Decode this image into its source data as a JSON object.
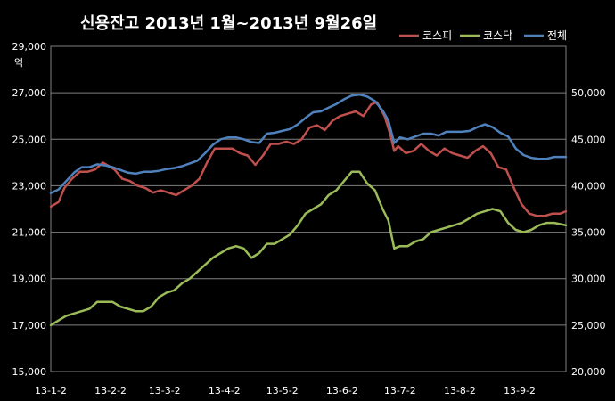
{
  "chart_data": {
    "type": "line",
    "title": "신용잔고 2013년 1월~2013년 9월26일",
    "y_left_unit": "억",
    "y_left": {
      "min": 15000,
      "max": 29000,
      "ticks": [
        "15,000",
        "17,000",
        "19,000",
        "21,000",
        "23,000",
        "25,000",
        "27,000",
        "29,000"
      ]
    },
    "y_right": {
      "min": 20000,
      "max": 55000,
      "ticks": [
        "20,000",
        "25,000",
        "30,000",
        "35,000",
        "40,000",
        "45,000",
        "50,000"
      ]
    },
    "x_ticks": [
      "13-1-2",
      "13-2-2",
      "13-3-2",
      "13-4-2",
      "13-5-2",
      "13-6-2",
      "13-7-2",
      "13-8-2",
      "13-9-2"
    ],
    "grid": true,
    "legend_position": "top-right",
    "series": [
      {
        "name": "코스피",
        "axis": "left",
        "color": "#c0504d",
        "points": [
          [
            "2013-01-02",
            22100
          ],
          [
            "2013-01-06",
            22300
          ],
          [
            "2013-01-09",
            22900
          ],
          [
            "2013-01-13",
            23300
          ],
          [
            "2013-01-17",
            23600
          ],
          [
            "2013-01-21",
            23600
          ],
          [
            "2013-01-25",
            23700
          ],
          [
            "2013-01-29",
            24000
          ],
          [
            "2013-01-31",
            23900
          ],
          [
            "2013-02-04",
            23700
          ],
          [
            "2013-02-08",
            23300
          ],
          [
            "2013-02-12",
            23200
          ],
          [
            "2013-02-16",
            23000
          ],
          [
            "2013-02-20",
            22900
          ],
          [
            "2013-02-24",
            22700
          ],
          [
            "2013-02-28",
            22800
          ],
          [
            "2013-03-04",
            22700
          ],
          [
            "2013-03-08",
            22600
          ],
          [
            "2013-03-12",
            22800
          ],
          [
            "2013-03-16",
            23000
          ],
          [
            "2013-03-20",
            23300
          ],
          [
            "2013-03-24",
            24000
          ],
          [
            "2013-03-28",
            24600
          ],
          [
            "2013-04-02",
            24600
          ],
          [
            "2013-04-06",
            24600
          ],
          [
            "2013-04-10",
            24400
          ],
          [
            "2013-04-14",
            24300
          ],
          [
            "2013-04-18",
            23900
          ],
          [
            "2013-04-22",
            24300
          ],
          [
            "2013-04-26",
            24800
          ],
          [
            "2013-04-30",
            24800
          ],
          [
            "2013-05-04",
            24900
          ],
          [
            "2013-05-08",
            24800
          ],
          [
            "2013-05-12",
            25000
          ],
          [
            "2013-05-16",
            25500
          ],
          [
            "2013-05-20",
            25600
          ],
          [
            "2013-05-24",
            25400
          ],
          [
            "2013-05-28",
            25800
          ],
          [
            "2013-06-01",
            26000
          ],
          [
            "2013-06-05",
            26100
          ],
          [
            "2013-06-09",
            26200
          ],
          [
            "2013-06-13",
            26000
          ],
          [
            "2013-06-17",
            26500
          ],
          [
            "2013-06-20",
            26600
          ],
          [
            "2013-06-24",
            26000
          ],
          [
            "2013-06-27",
            25200
          ],
          [
            "2013-06-29",
            24500
          ],
          [
            "2013-07-01",
            24700
          ],
          [
            "2013-07-05",
            24400
          ],
          [
            "2013-07-09",
            24500
          ],
          [
            "2013-07-13",
            24800
          ],
          [
            "2013-07-17",
            24500
          ],
          [
            "2013-07-21",
            24300
          ],
          [
            "2013-07-25",
            24600
          ],
          [
            "2013-07-29",
            24400
          ],
          [
            "2013-08-02",
            24300
          ],
          [
            "2013-08-06",
            24200
          ],
          [
            "2013-08-10",
            24500
          ],
          [
            "2013-08-14",
            24700
          ],
          [
            "2013-08-18",
            24400
          ],
          [
            "2013-08-22",
            23800
          ],
          [
            "2013-08-26",
            23700
          ],
          [
            "2013-08-30",
            22900
          ],
          [
            "2013-09-03",
            22200
          ],
          [
            "2013-09-07",
            21800
          ],
          [
            "2013-09-11",
            21700
          ],
          [
            "2013-09-15",
            21700
          ],
          [
            "2013-09-19",
            21800
          ],
          [
            "2013-09-23",
            21800
          ],
          [
            "2013-09-26",
            21900
          ]
        ]
      },
      {
        "name": "코스닥",
        "axis": "left",
        "color": "#9bbb59",
        "points": [
          [
            "2013-01-02",
            17000
          ],
          [
            "2013-01-06",
            17200
          ],
          [
            "2013-01-10",
            17400
          ],
          [
            "2013-01-14",
            17500
          ],
          [
            "2013-01-18",
            17600
          ],
          [
            "2013-01-22",
            17700
          ],
          [
            "2013-01-26",
            18000
          ],
          [
            "2013-01-30",
            18000
          ],
          [
            "2013-02-03",
            18000
          ],
          [
            "2013-02-07",
            17800
          ],
          [
            "2013-02-11",
            17700
          ],
          [
            "2013-02-15",
            17600
          ],
          [
            "2013-02-19",
            17600
          ],
          [
            "2013-02-23",
            17800
          ],
          [
            "2013-02-27",
            18200
          ],
          [
            "2013-03-03",
            18400
          ],
          [
            "2013-03-07",
            18500
          ],
          [
            "2013-03-11",
            18800
          ],
          [
            "2013-03-15",
            19000
          ],
          [
            "2013-03-19",
            19300
          ],
          [
            "2013-03-23",
            19600
          ],
          [
            "2013-03-27",
            19900
          ],
          [
            "2013-03-31",
            20100
          ],
          [
            "2013-04-04",
            20300
          ],
          [
            "2013-04-08",
            20400
          ],
          [
            "2013-04-12",
            20300
          ],
          [
            "2013-04-16",
            19900
          ],
          [
            "2013-04-20",
            20100
          ],
          [
            "2013-04-24",
            20500
          ],
          [
            "2013-04-28",
            20500
          ],
          [
            "2013-05-02",
            20700
          ],
          [
            "2013-05-06",
            20900
          ],
          [
            "2013-05-10",
            21300
          ],
          [
            "2013-05-14",
            21800
          ],
          [
            "2013-05-18",
            22000
          ],
          [
            "2013-05-22",
            22200
          ],
          [
            "2013-05-26",
            22600
          ],
          [
            "2013-05-30",
            22800
          ],
          [
            "2013-06-03",
            23200
          ],
          [
            "2013-06-07",
            23600
          ],
          [
            "2013-06-11",
            23600
          ],
          [
            "2013-06-15",
            23100
          ],
          [
            "2013-06-19",
            22800
          ],
          [
            "2013-06-23",
            22000
          ],
          [
            "2013-06-26",
            21500
          ],
          [
            "2013-06-29",
            20300
          ],
          [
            "2013-07-02",
            20400
          ],
          [
            "2013-07-06",
            20400
          ],
          [
            "2013-07-10",
            20600
          ],
          [
            "2013-07-14",
            20700
          ],
          [
            "2013-07-18",
            21000
          ],
          [
            "2013-07-22",
            21100
          ],
          [
            "2013-07-26",
            21200
          ],
          [
            "2013-07-30",
            21300
          ],
          [
            "2013-08-03",
            21400
          ],
          [
            "2013-08-07",
            21600
          ],
          [
            "2013-08-11",
            21800
          ],
          [
            "2013-08-15",
            21900
          ],
          [
            "2013-08-19",
            22000
          ],
          [
            "2013-08-23",
            21900
          ],
          [
            "2013-08-27",
            21400
          ],
          [
            "2013-08-31",
            21100
          ],
          [
            "2013-09-04",
            21000
          ],
          [
            "2013-09-08",
            21100
          ],
          [
            "2013-09-12",
            21300
          ],
          [
            "2013-09-16",
            21400
          ],
          [
            "2013-09-20",
            21400
          ],
          [
            "2013-09-26",
            21300
          ]
        ]
      },
      {
        "name": "전체",
        "axis": "right",
        "color": "#4f81bd",
        "points": [
          [
            "2013-01-02",
            39200
          ],
          [
            "2013-01-06",
            39600
          ],
          [
            "2013-01-10",
            40500
          ],
          [
            "2013-01-14",
            41400
          ],
          [
            "2013-01-18",
            42000
          ],
          [
            "2013-01-22",
            42000
          ],
          [
            "2013-01-26",
            42300
          ],
          [
            "2013-01-30",
            42200
          ],
          [
            "2013-02-03",
            42000
          ],
          [
            "2013-02-07",
            41700
          ],
          [
            "2013-02-11",
            41400
          ],
          [
            "2013-02-15",
            41300
          ],
          [
            "2013-02-19",
            41500
          ],
          [
            "2013-02-23",
            41500
          ],
          [
            "2013-02-27",
            41600
          ],
          [
            "2013-03-03",
            41800
          ],
          [
            "2013-03-07",
            41900
          ],
          [
            "2013-03-11",
            42100
          ],
          [
            "2013-03-15",
            42400
          ],
          [
            "2013-03-19",
            42700
          ],
          [
            "2013-03-23",
            43500
          ],
          [
            "2013-03-27",
            44400
          ],
          [
            "2013-03-31",
            45000
          ],
          [
            "2013-04-04",
            45200
          ],
          [
            "2013-04-08",
            45200
          ],
          [
            "2013-04-12",
            45000
          ],
          [
            "2013-04-16",
            44700
          ],
          [
            "2013-04-20",
            44600
          ],
          [
            "2013-04-24",
            45600
          ],
          [
            "2013-04-28",
            45700
          ],
          [
            "2013-05-02",
            45900
          ],
          [
            "2013-05-06",
            46100
          ],
          [
            "2013-05-10",
            46600
          ],
          [
            "2013-05-14",
            47300
          ],
          [
            "2013-05-18",
            47900
          ],
          [
            "2013-05-22",
            48000
          ],
          [
            "2013-05-26",
            48400
          ],
          [
            "2013-05-30",
            48800
          ],
          [
            "2013-06-03",
            49300
          ],
          [
            "2013-06-07",
            49700
          ],
          [
            "2013-06-11",
            49800
          ],
          [
            "2013-06-15",
            49600
          ],
          [
            "2013-06-19",
            49100
          ],
          [
            "2013-06-23",
            48100
          ],
          [
            "2013-06-26",
            47000
          ],
          [
            "2013-06-29",
            44600
          ],
          [
            "2013-07-02",
            45200
          ],
          [
            "2013-07-06",
            45000
          ],
          [
            "2013-07-10",
            45300
          ],
          [
            "2013-07-14",
            45600
          ],
          [
            "2013-07-18",
            45600
          ],
          [
            "2013-07-22",
            45400
          ],
          [
            "2013-07-26",
            45800
          ],
          [
            "2013-07-30",
            45800
          ],
          [
            "2013-08-03",
            45800
          ],
          [
            "2013-08-07",
            45900
          ],
          [
            "2013-08-11",
            46300
          ],
          [
            "2013-08-15",
            46600
          ],
          [
            "2013-08-19",
            46300
          ],
          [
            "2013-08-23",
            45700
          ],
          [
            "2013-08-27",
            45300
          ],
          [
            "2013-08-31",
            44000
          ],
          [
            "2013-09-04",
            43300
          ],
          [
            "2013-09-08",
            43000
          ],
          [
            "2013-09-12",
            42900
          ],
          [
            "2013-09-16",
            42900
          ],
          [
            "2013-09-20",
            43100
          ],
          [
            "2013-09-26",
            43100
          ]
        ]
      }
    ]
  }
}
